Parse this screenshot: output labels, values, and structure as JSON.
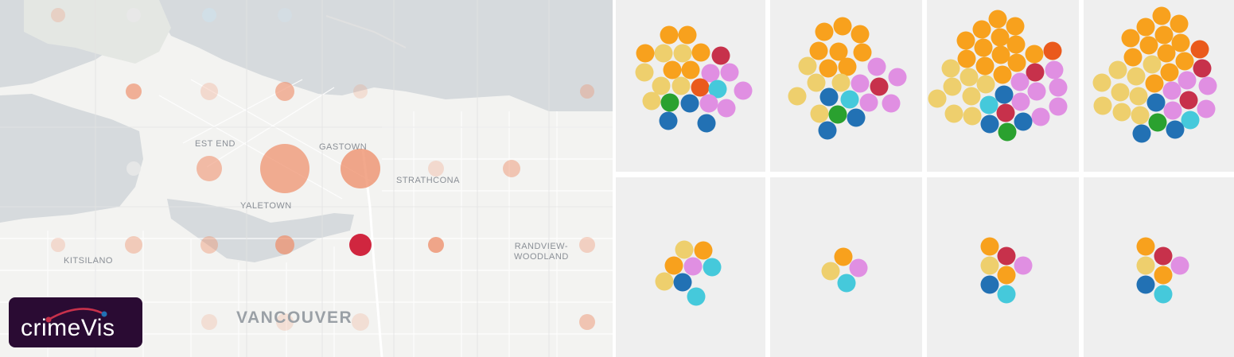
{
  "logo": {
    "text": "crimeVis"
  },
  "map": {
    "neighbourhoods": {
      "west_end": "EST END",
      "gastown": "GASTOWN",
      "strathcona": "STRATHCONA",
      "yaletown": "YALETOWN",
      "kitsilano": "KITSILANO",
      "randview_woodland_line1": "RANDVIEW-",
      "randview_woodland_line2": "WOODLAND",
      "vancouver": "VANCOUVER"
    }
  },
  "colors": {
    "map_land": "#f3f3f1",
    "map_water": "#d6dadd",
    "map_marker": "#ee8b66",
    "map_marker_highlight": "#d0263f",
    "orange": "#f8a11d",
    "yellow": "#eecf6d",
    "pink": "#e08fe2",
    "crimson": "#c7314b",
    "red_orange": "#ea5a1c",
    "cyan": "#45c9db",
    "blue": "#2271b4",
    "green": "#2aa12f",
    "panel": "#efefef",
    "logo_bg": "#2a0b33"
  },
  "panels": [
    {
      "id": "top-1"
    },
    {
      "id": "top-2"
    },
    {
      "id": "top-3"
    },
    {
      "id": "top-4"
    },
    {
      "id": "bottom-1"
    },
    {
      "id": "bottom-2"
    },
    {
      "id": "bottom-3"
    },
    {
      "id": "bottom-4"
    }
  ]
}
